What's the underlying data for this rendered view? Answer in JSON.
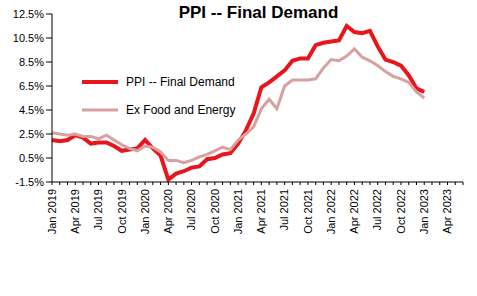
{
  "chart_data": {
    "type": "line",
    "title": "PPI -- Final Demand",
    "categories": [
      "Jan 2019",
      null,
      null,
      "Apr 2019",
      null,
      null,
      "Jul 2019",
      null,
      null,
      "Oct 2019",
      null,
      null,
      "Jan 2020",
      null,
      null,
      "Apr 2020",
      null,
      null,
      "Jul 2020",
      null,
      null,
      "Oct 2020",
      null,
      null,
      "Jan 2021",
      null,
      null,
      "Apr 2021",
      null,
      null,
      "Jul 2021",
      null,
      null,
      "Oct 2021",
      null,
      null,
      "Jan 2022",
      null,
      null,
      "Apr 2022",
      null,
      null,
      "Jul 2022",
      null,
      null,
      "Oct 2022",
      null,
      null,
      "Jan 2023",
      null,
      null,
      "Apr 2023",
      null,
      null
    ],
    "series": [
      {
        "name": "PPI -- Final Demand",
        "color": "#e8151b",
        "values": [
          2.0,
          1.9,
          2.0,
          2.4,
          2.2,
          1.7,
          1.8,
          1.8,
          1.5,
          1.1,
          1.2,
          1.3,
          2.0,
          1.3,
          0.7,
          -1.3,
          -0.8,
          -0.6,
          -0.3,
          -0.2,
          0.4,
          0.5,
          0.8,
          0.9,
          1.7,
          2.8,
          4.2,
          6.4,
          6.8,
          7.3,
          7.8,
          8.6,
          8.8,
          8.8,
          9.9,
          10.1,
          10.2,
          10.3,
          11.5,
          11.0,
          10.9,
          11.1,
          9.8,
          8.7,
          8.5,
          8.2,
          7.4,
          6.3,
          6.0,
          null,
          null,
          null,
          null,
          null
        ]
      },
      {
        "name": "Ex Food and Energy",
        "color": "#d9a0a0",
        "values": [
          2.6,
          2.5,
          2.4,
          2.5,
          2.3,
          2.3,
          2.1,
          2.4,
          2.0,
          1.6,
          1.3,
          1.1,
          1.5,
          1.4,
          1.0,
          0.3,
          0.3,
          0.1,
          0.3,
          0.6,
          0.8,
          1.1,
          1.4,
          1.2,
          2.0,
          2.5,
          3.1,
          4.6,
          5.4,
          4.6,
          6.5,
          7.0,
          7.0,
          7.0,
          7.1,
          8.0,
          8.7,
          8.6,
          9.0,
          9.6,
          8.9,
          8.6,
          8.2,
          7.7,
          7.3,
          7.1,
          6.8,
          6.0,
          5.5,
          null,
          null,
          null,
          null,
          null
        ]
      }
    ],
    "ylim": [
      -1.5,
      12.5
    ],
    "yticks": [
      {
        "value": -1.5,
        "label": "-1.5%"
      },
      {
        "value": 0.5,
        "label": "0.5%"
      },
      {
        "value": 2.5,
        "label": "2.5%"
      },
      {
        "value": 4.5,
        "label": "4.5%"
      },
      {
        "value": 6.5,
        "label": "6.5%"
      },
      {
        "value": 8.5,
        "label": "8.5%"
      },
      {
        "value": 10.5,
        "label": "10.5%"
      },
      {
        "value": 12.5,
        "label": "12.5%"
      }
    ],
    "grid": false,
    "legend": "upper left"
  }
}
